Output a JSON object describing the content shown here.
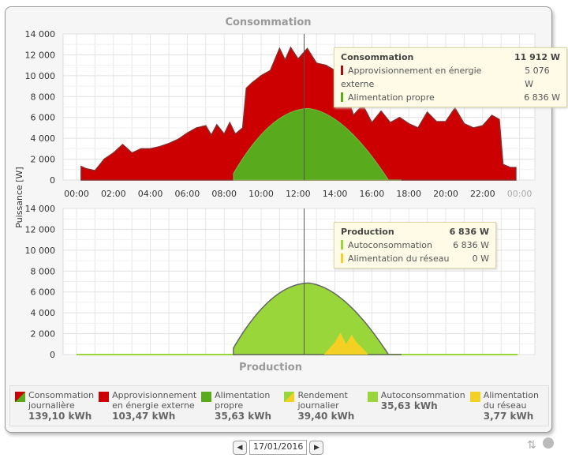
{
  "chart_data": [
    {
      "type": "area",
      "title": "Consommation",
      "ylabel": "Puissance [W]",
      "ylim": [
        0,
        14000
      ],
      "yticks": [
        "14 000",
        "12 000",
        "10 000",
        "8 000",
        "6 000",
        "4 000",
        "2 000",
        "0"
      ],
      "xticks": [
        "00:00",
        "02:00",
        "04:00",
        "06:00",
        "08:00",
        "10:00",
        "12:00",
        "14:00",
        "16:00",
        "18:00",
        "20:00",
        "22:00",
        "00:00"
      ],
      "x_hours": [
        0.25,
        0.5,
        1,
        1.5,
        2,
        2.5,
        3,
        3.5,
        4,
        4.5,
        5,
        5.5,
        6,
        6.5,
        7,
        7.3,
        7.6,
        8,
        8.3,
        8.6,
        9,
        9.2,
        9.5,
        10,
        10.5,
        11,
        11.3,
        11.6,
        12,
        12.5,
        13,
        13.5,
        14,
        14.5,
        15,
        15.5,
        16,
        16.5,
        17,
        17.5,
        18,
        18.5,
        19,
        19.5,
        20,
        20.5,
        21,
        21.5,
        22,
        22.5,
        22.9,
        23.1,
        23.5,
        23.8
      ],
      "series": [
        {
          "name": "Approvisionnement en énergie externe",
          "color": "#cc0000",
          "total": [
            1300,
            1100,
            900,
            2000,
            2600,
            3400,
            2600,
            3000,
            3000,
            3200,
            3500,
            3900,
            4500,
            5000,
            5200,
            4300,
            5300,
            4400,
            5500,
            4400,
            5000,
            8800,
            9300,
            10000,
            10500,
            12600,
            11500,
            12700,
            11600,
            12600,
            11200,
            11000,
            10500,
            9000,
            6200,
            7200,
            5500,
            6600,
            5500,
            6000,
            5400,
            5000,
            6500,
            5600,
            5600,
            6900,
            5400,
            5000,
            5200,
            6200,
            5800,
            1500,
            1200,
            1200
          ]
        },
        {
          "name": "Alimentation propre",
          "color": "#5aaa1e"
        }
      ],
      "crosshair": "12:20"
    },
    {
      "type": "area",
      "title": "Production",
      "ylim": [
        0,
        14000
      ],
      "yticks": [
        "14 000",
        "12 000",
        "10 000",
        "8 000",
        "6 000",
        "4 000",
        "2 000",
        "0"
      ],
      "series": [
        {
          "name": "Autoconsommation",
          "color": "#99d63a",
          "peak": 6836
        },
        {
          "name": "Alimentation du réseau",
          "color": "#f5d024",
          "x_hours": [
            13.4,
            13.7,
            14,
            14.3,
            14.6,
            14.9,
            15.2,
            15.5,
            15.8
          ],
          "values": [
            0,
            600,
            1200,
            2100,
            1000,
            1900,
            1100,
            600,
            0
          ]
        }
      ]
    }
  ],
  "tooltip_top": {
    "title": "Consommation",
    "total": "11 912 W",
    "rows": [
      {
        "label": "Approvisionnement en énergie externe",
        "value": "5 076 W",
        "color": "#a01010"
      },
      {
        "label": "Alimentation propre",
        "value": "6 836 W",
        "color": "#5aaa1e"
      }
    ]
  },
  "tooltip_bottom": {
    "title": "Production",
    "total": "6 836 W",
    "rows": [
      {
        "label": "Autoconsommation",
        "value": "6 836 W",
        "color": "#99d63a"
      },
      {
        "label": "Alimentation du réseau",
        "value": "0 W",
        "color": "#f5d024"
      }
    ]
  },
  "legend": [
    {
      "label1": "Consommation",
      "label2": "journalière",
      "value": "139,10 kWh",
      "colors": [
        "#cc0000",
        "#5aaa1e"
      ]
    },
    {
      "label1": "Approvisionnement",
      "label2": "en énergie externe",
      "value": "103,47 kWh",
      "colors": [
        "#cc0000"
      ]
    },
    {
      "label1": "Alimentation",
      "label2": "propre",
      "value": "35,63 kWh",
      "colors": [
        "#5aaa1e"
      ]
    },
    {
      "label1": "Rendement",
      "label2": "journalier",
      "value": "39,40 kWh",
      "colors": [
        "#99d63a",
        "#f5d024"
      ]
    },
    {
      "label1": "Autoconsommation",
      "label2": "",
      "value": "35,63 kWh",
      "colors": [
        "#99d63a"
      ]
    },
    {
      "label1": "Alimentation",
      "label2": "du réseau",
      "value": "3,77 kWh",
      "colors": [
        "#f5d024"
      ]
    }
  ],
  "nav": {
    "date": "17/01/2016",
    "prev": "◀",
    "next": "▶"
  }
}
